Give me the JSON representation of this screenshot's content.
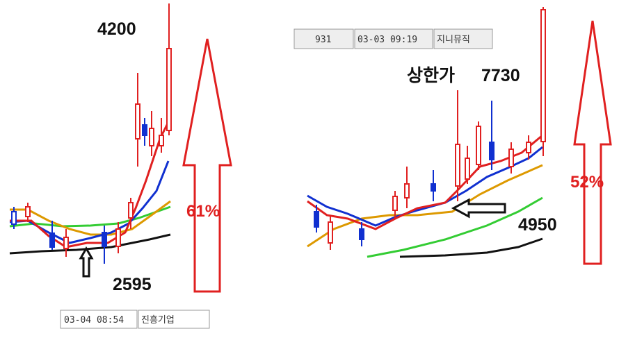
{
  "left_panel": {
    "high_price": "4200",
    "low_price": "2595",
    "gain": "61%",
    "info_box": {
      "date_time": "03-04 08:54",
      "name": "진흥기업"
    }
  },
  "right_panel": {
    "limit_up_label": "상한가",
    "high_price": "7730",
    "low_price": "4950",
    "gain": "52%",
    "info_box": {
      "code": "931",
      "date_time": "03-03 09:19",
      "name": "지니뮤직"
    }
  }
}
